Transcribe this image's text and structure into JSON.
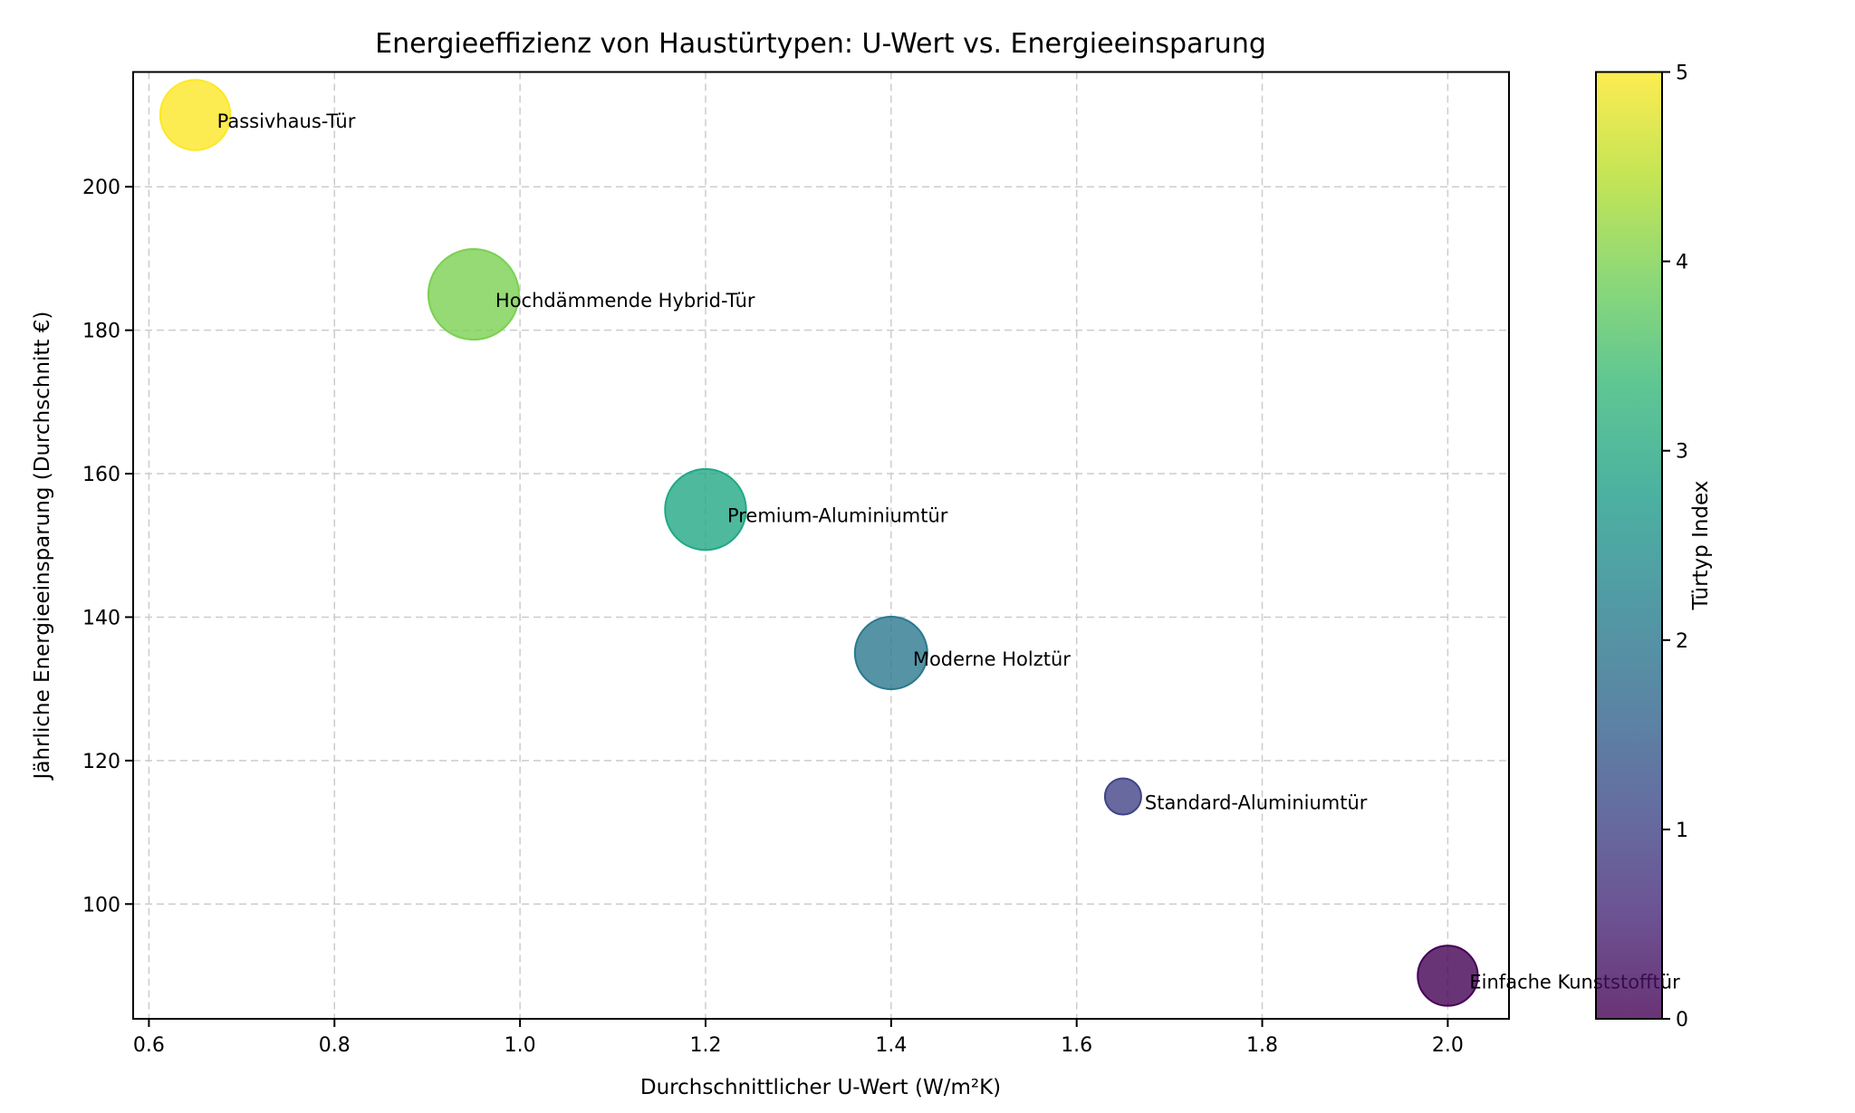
{
  "chart_data": {
    "type": "scatter",
    "title": "Energieeffizienz von Haustürtypen: U-Wert vs. Energieeinsparung",
    "xlabel": "Durchschnittlicher U-Wert (W/m²K)",
    "ylabel": "Jährliche Energieeinsparung (Durchschnitt €)",
    "xlim": [
      0.583,
      2.066
    ],
    "ylim": [
      84,
      216
    ],
    "xticks": [
      0.6,
      0.8,
      1.0,
      1.2,
      1.4,
      1.6,
      1.8,
      2.0
    ],
    "xtick_labels": [
      "0.6",
      "0.8",
      "1.0",
      "1.2",
      "1.4",
      "1.6",
      "1.8",
      "2.0"
    ],
    "yticks": [
      100,
      120,
      140,
      160,
      180,
      200
    ],
    "ytick_labels": [
      "100",
      "120",
      "140",
      "160",
      "180",
      "200"
    ],
    "grid": true,
    "points": [
      {
        "label": "Passivhaus-Tür",
        "x": 0.65,
        "y": 210,
        "index": 5,
        "size": 1500
      },
      {
        "label": "Hochdämmende Hybrid-Tür",
        "x": 0.95,
        "y": 185,
        "index": 4,
        "size": 2500
      },
      {
        "label": "Premium-Aluminiumtür",
        "x": 1.2,
        "y": 155,
        "index": 3,
        "size": 2000
      },
      {
        "label": "Moderne Holztür",
        "x": 1.4,
        "y": 135,
        "index": 2,
        "size": 1600
      },
      {
        "label": "Standard-Aluminiumtür",
        "x": 1.65,
        "y": 115,
        "index": 1,
        "size": 400
      },
      {
        "label": "Einfache Kunststofftür",
        "x": 2.0,
        "y": 90,
        "index": 0,
        "size": 1100
      }
    ],
    "colorbar": {
      "label": "Türtyp Index",
      "range": [
        0,
        5
      ],
      "ticks": [
        0,
        1,
        2,
        3,
        4,
        5
      ],
      "tick_labels": [
        "0",
        "1",
        "2",
        "3",
        "4",
        "5"
      ],
      "colormap": "viridis",
      "colors": [
        "#440154",
        "#414487",
        "#2a788e",
        "#22a884",
        "#7ad151",
        "#fde725"
      ]
    }
  }
}
